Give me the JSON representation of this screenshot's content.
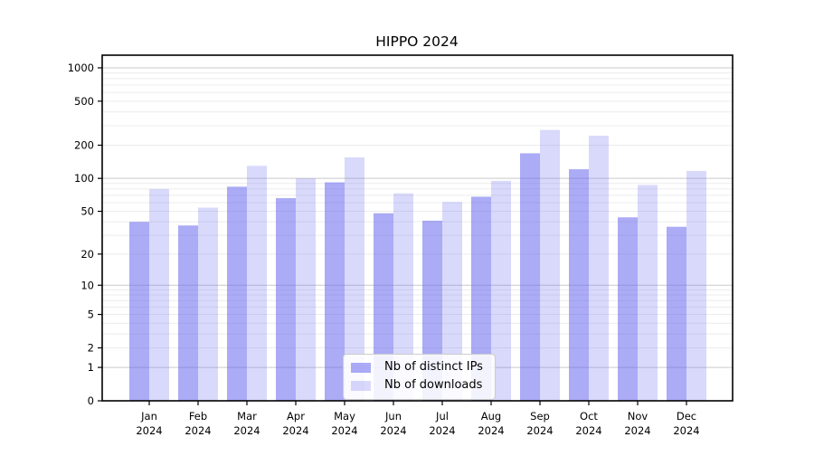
{
  "title": "HIPPO 2024",
  "chart_data": {
    "type": "bar",
    "title": "HIPPO 2024",
    "categories": [
      "Jan 2024",
      "Feb 2024",
      "Mar 2024",
      "Apr 2024",
      "May 2024",
      "Jun 2024",
      "Jul 2024",
      "Aug 2024",
      "Sep 2024",
      "Oct 2024",
      "Nov 2024",
      "Dec 2024"
    ],
    "series": [
      {
        "name": "Nb of distinct IPs",
        "color": "#6666ee",
        "opacity": 0.55,
        "values": [
          40,
          37,
          84,
          66,
          92,
          48,
          41,
          68,
          169,
          121,
          44,
          36
        ]
      },
      {
        "name": "Nb of downloads",
        "color": "#6666ee",
        "opacity": 0.25,
        "values": [
          80,
          54,
          130,
          100,
          155,
          73,
          61,
          95,
          275,
          244,
          87,
          117
        ]
      }
    ],
    "xlabel": "",
    "ylabel": "",
    "yscale": "log1p",
    "ylim": [
      0,
      1300
    ],
    "y_ticks": [
      0,
      1,
      2,
      5,
      10,
      20,
      50,
      100,
      200,
      500,
      1000
    ],
    "grid": true,
    "grid_major_color": "#c9c9c9",
    "grid_minor_color": "#ececec",
    "axis_color": "#000000",
    "legend_position": "lower center"
  }
}
